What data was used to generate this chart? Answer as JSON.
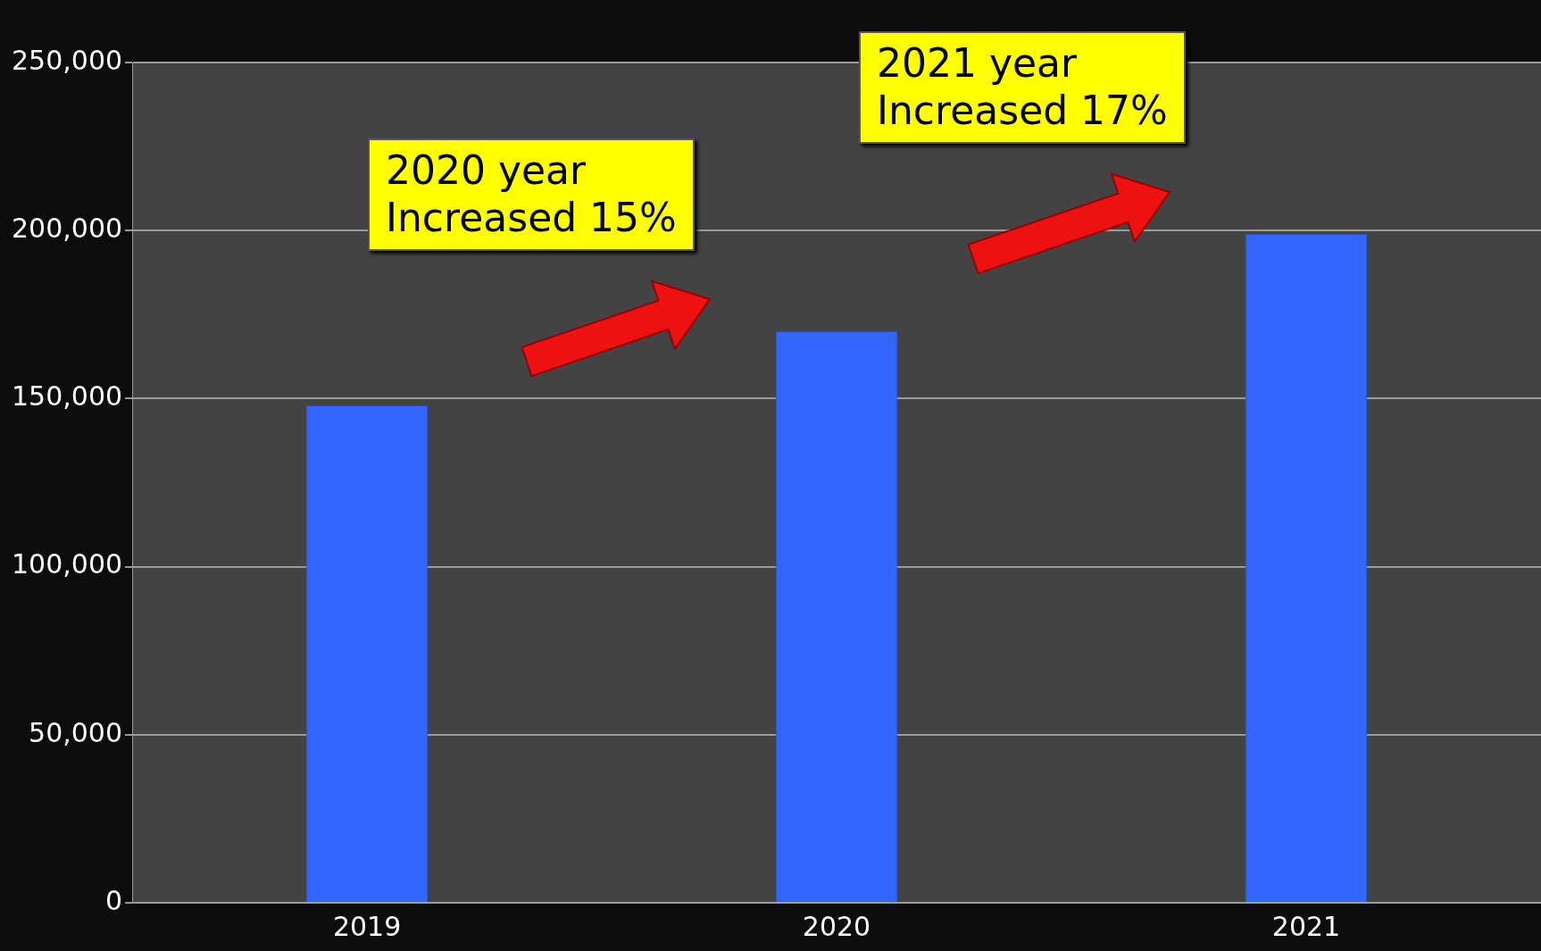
{
  "chart_data": {
    "type": "bar",
    "categories": [
      "2019",
      "2020",
      "2021"
    ],
    "values": [
      148000,
      170000,
      199000
    ],
    "color": "#3366ff",
    "ylim": [
      0,
      250000
    ],
    "yticks": [
      {
        "value": 0,
        "label": "0"
      },
      {
        "value": 50000,
        "label": "50,000"
      },
      {
        "value": 100000,
        "label": "100,000"
      },
      {
        "value": 150000,
        "label": "150,000"
      },
      {
        "value": 200000,
        "label": "200,000"
      },
      {
        "value": 250000,
        "label": "250,000"
      }
    ],
    "grid": "y",
    "legend": false,
    "annotations": [
      "2020 year\nIncreased 15%",
      "2021 year\nIncreased 17%"
    ]
  }
}
